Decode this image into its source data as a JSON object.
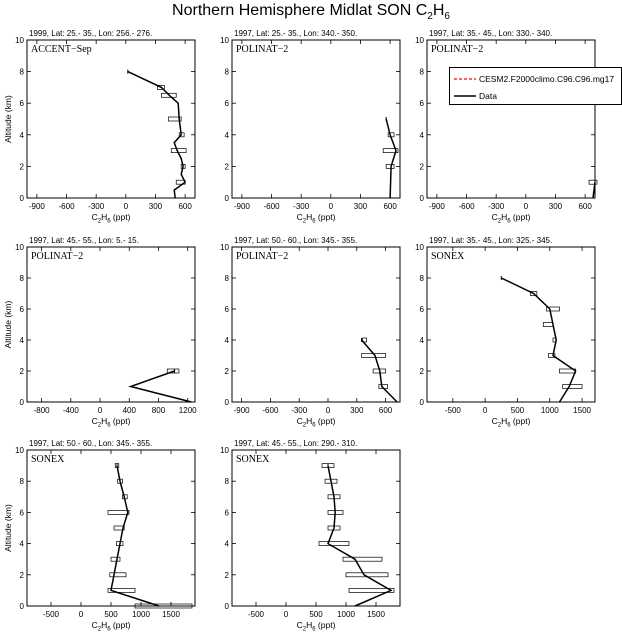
{
  "page": {
    "title_main": "Northern Hemisphere Midlat SON C",
    "title_sub": "2",
    "title_rest": "H",
    "title_sub2": "6"
  },
  "legend": {
    "items": [
      {
        "label": "CESM2.F2000climo.C96.C96.mg17",
        "color": "#ff0000",
        "style": "dashed"
      },
      {
        "label": "Data",
        "color": "#000000",
        "style": "solid"
      }
    ]
  },
  "chart_data": [
    {
      "type": "line",
      "header": "1999, Lat: 25.- 35., Lon: 256.- 276.",
      "campaign": "ACCENT−Sep",
      "xlabel": "C2H6 (ppt)",
      "ylabel": "Altitude (km)",
      "xlim": [
        -1000,
        700
      ],
      "ylim": [
        0,
        10
      ],
      "xticks": [
        -900,
        -600,
        -300,
        0,
        300,
        600
      ],
      "yticks": [
        0,
        2,
        4,
        6,
        8,
        10
      ],
      "points": [
        [
          20,
          8
        ],
        [
          360,
          7
        ],
        [
          440,
          6.5
        ],
        [
          530,
          6
        ],
        [
          540,
          5
        ],
        [
          550,
          4.5
        ],
        [
          560,
          4
        ],
        [
          490,
          3.5
        ],
        [
          520,
          3
        ],
        [
          560,
          2.5
        ],
        [
          580,
          2
        ],
        [
          560,
          1.5
        ],
        [
          600,
          1
        ],
        [
          490,
          0.5
        ],
        [
          500,
          0
        ]
      ],
      "error_bars": [
        [
          320,
          390,
          7
        ],
        [
          360,
          510,
          6.5
        ],
        [
          430,
          560,
          5
        ],
        [
          540,
          590,
          4
        ],
        [
          460,
          610,
          3
        ],
        [
          560,
          600,
          2
        ],
        [
          510,
          600,
          1
        ]
      ]
    },
    {
      "type": "line",
      "header": "1997, Lat: 25.- 35., Lon: 340.- 350.",
      "campaign": "POLINAT−2",
      "xlabel": "C2H6 (ppt)",
      "ylabel": "",
      "xlim": [
        -1000,
        700
      ],
      "ylim": [
        0,
        10
      ],
      "xticks": [
        -900,
        -600,
        -300,
        0,
        300,
        600
      ],
      "yticks": [
        0,
        2,
        4,
        6,
        8,
        10
      ],
      "points": [
        [
          560,
          5
        ],
        [
          600,
          4
        ],
        [
          660,
          3
        ],
        [
          610,
          2
        ],
        [
          600,
          0
        ]
      ],
      "error_bars": [
        [
          580,
          640,
          4
        ],
        [
          530,
          680,
          3
        ],
        [
          560,
          640,
          2
        ]
      ]
    },
    {
      "type": "line",
      "header": "1997, Lat: 35.- 45., Lon: 330.- 340.",
      "campaign": "POLINAT−2",
      "xlabel": "C2H6 (ppt)",
      "ylabel": "",
      "xlim": [
        -1000,
        700
      ],
      "ylim": [
        0,
        10
      ],
      "xticks": [
        -900,
        -600,
        -300,
        0,
        300,
        600
      ],
      "yticks": [
        0,
        2,
        4,
        6,
        8,
        10
      ],
      "points": [
        [
          700,
          1
        ],
        [
          680,
          0
        ]
      ],
      "error_bars": [
        [
          640,
          720,
          1
        ]
      ]
    },
    {
      "type": "line",
      "header": "1997, Lat: 45.- 55., Lon: 5.- 15.",
      "campaign": "POLINAT−2",
      "xlabel": "C2H6 (ppt)",
      "ylabel": "Altitude (km)",
      "xlim": [
        -1000,
        1300
      ],
      "ylim": [
        0,
        10
      ],
      "xticks": [
        -800,
        -400,
        0,
        400,
        800,
        1200
      ],
      "yticks": [
        0,
        2,
        4,
        6,
        8,
        10
      ],
      "points": [
        [
          1020,
          2
        ],
        [
          420,
          1
        ],
        [
          1250,
          0
        ]
      ],
      "error_bars": [
        [
          920,
          1080,
          2
        ]
      ]
    },
    {
      "type": "line",
      "header": "1997, Lat: 50.- 60., Lon: 345.- 355.",
      "campaign": "POLINAT−2",
      "xlabel": "C2H6 (ppt)",
      "ylabel": "",
      "xlim": [
        -1000,
        750
      ],
      "ylim": [
        0,
        10
      ],
      "xticks": [
        -900,
        -600,
        -300,
        0,
        300,
        600
      ],
      "yticks": [
        0,
        2,
        4,
        6,
        8,
        10
      ],
      "points": [
        [
          350,
          4
        ],
        [
          490,
          3
        ],
        [
          540,
          2
        ],
        [
          560,
          1
        ],
        [
          720,
          0
        ]
      ],
      "error_bars": [
        [
          360,
          400,
          4
        ],
        [
          350,
          600,
          3
        ],
        [
          470,
          600,
          2
        ],
        [
          530,
          620,
          1
        ]
      ]
    },
    {
      "type": "line",
      "header": "1997, Lat: 35.- 45., Lon: 325.- 345.",
      "campaign": "SONEX",
      "xlabel": "C2H6 (ppt)",
      "ylabel": "",
      "xlim": [
        -900,
        1700
      ],
      "ylim": [
        0,
        10
      ],
      "xticks": [
        -500,
        0,
        500,
        1000,
        1500
      ],
      "yticks": [
        0,
        2,
        4,
        6,
        8,
        10
      ],
      "points": [
        [
          250,
          8
        ],
        [
          750,
          7
        ],
        [
          1000,
          6
        ],
        [
          1050,
          5
        ],
        [
          1100,
          4
        ],
        [
          1050,
          3
        ],
        [
          1400,
          2
        ],
        [
          1300,
          1
        ],
        [
          1150,
          0
        ]
      ],
      "error_bars": [
        [
          700,
          800,
          7
        ],
        [
          950,
          1150,
          6
        ],
        [
          900,
          1050,
          5
        ],
        [
          1050,
          1100,
          4
        ],
        [
          980,
          1080,
          3
        ],
        [
          1150,
          1400,
          2
        ],
        [
          1200,
          1500,
          1
        ]
      ]
    },
    {
      "type": "line",
      "header": "1997, Lat: 50.- 60., Lon: 345.- 355.",
      "campaign": "SONEX",
      "xlabel": "C2H6 (ppt)",
      "ylabel": "Altitude (km)",
      "xlim": [
        -900,
        1900
      ],
      "ylim": [
        0,
        10
      ],
      "xticks": [
        -500,
        0,
        500,
        1000,
        1500
      ],
      "yticks": [
        0,
        2,
        4,
        6,
        8,
        10
      ],
      "points": [
        [
          600,
          9
        ],
        [
          650,
          8
        ],
        [
          720,
          7
        ],
        [
          780,
          6
        ],
        [
          700,
          5
        ],
        [
          650,
          4
        ],
        [
          600,
          3
        ],
        [
          550,
          2
        ],
        [
          500,
          1
        ],
        [
          1300,
          0
        ]
      ],
      "error_bars": [
        [
          570,
          630,
          9
        ],
        [
          610,
          690,
          8
        ],
        [
          690,
          770,
          7
        ],
        [
          450,
          800,
          6
        ],
        [
          550,
          720,
          5
        ],
        [
          590,
          700,
          4
        ],
        [
          500,
          650,
          3
        ],
        [
          480,
          750,
          2
        ],
        [
          450,
          900,
          1
        ],
        [
          900,
          1850,
          0
        ]
      ]
    },
    {
      "type": "line",
      "header": "1997, Lat: 45.- 55., Lon: 290.- 310.",
      "campaign": "SONEX",
      "xlabel": "C2H6 (ppt)",
      "ylabel": "",
      "xlim": [
        -900,
        1900
      ],
      "ylim": [
        0,
        10
      ],
      "xticks": [
        -500,
        0,
        500,
        1000,
        1500
      ],
      "yticks": [
        0,
        2,
        4,
        6,
        8,
        10
      ],
      "points": [
        [
          700,
          9
        ],
        [
          750,
          8
        ],
        [
          800,
          7
        ],
        [
          820,
          6
        ],
        [
          800,
          5
        ],
        [
          700,
          4
        ],
        [
          1150,
          3
        ],
        [
          1300,
          2
        ],
        [
          1750,
          1
        ],
        [
          1150,
          0
        ]
      ],
      "error_bars": [
        [
          600,
          800,
          9
        ],
        [
          650,
          850,
          8
        ],
        [
          700,
          900,
          7
        ],
        [
          700,
          950,
          6
        ],
        [
          700,
          900,
          5
        ],
        [
          550,
          1050,
          4
        ],
        [
          950,
          1600,
          3
        ],
        [
          1000,
          1700,
          2
        ],
        [
          1050,
          1800,
          1
        ]
      ]
    }
  ]
}
